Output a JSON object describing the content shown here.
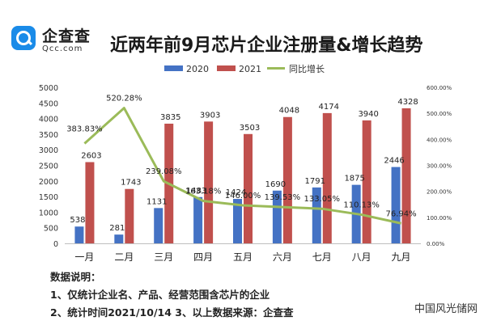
{
  "logo": {
    "name": "企查查",
    "url": "Qcc.com"
  },
  "title": "近两年前9月芯片企业注册量&增长趋势",
  "notes": {
    "heading": "数据说明：",
    "line1": "1、仅统计企业名、产品、经营范围含芯片的企业",
    "line2": "2、统计时间2021/10/14   3、以上数据来源：企查查"
  },
  "watermark": "中国风光储网",
  "colors": {
    "s2020": "#4472c4",
    "s2021": "#c0504d",
    "growth": "#9bbb59"
  },
  "chart_data": {
    "type": "bar",
    "title": "近两年前9月芯片企业注册量&增长趋势",
    "categories": [
      "一月",
      "二月",
      "三月",
      "四月",
      "五月",
      "六月",
      "七月",
      "八月",
      "九月"
    ],
    "series": [
      {
        "name": "2020",
        "type": "bar",
        "axis": "left",
        "values": [
          538,
          281,
          1131,
          1483,
          1424,
          1690,
          1791,
          1875,
          2446
        ]
      },
      {
        "name": "2021",
        "type": "bar",
        "axis": "left",
        "values": [
          2603,
          1743,
          3835,
          3903,
          3503,
          4048,
          4174,
          3940,
          4328
        ]
      },
      {
        "name": "同比增长",
        "type": "line",
        "axis": "right",
        "values": [
          383.83,
          520.28,
          239.08,
          163.18,
          146.0,
          139.53,
          133.05,
          110.13,
          76.94
        ],
        "labels": [
          "383.83%",
          "520.28%",
          "239.08%",
          "163.18%",
          "146.00%",
          "139.53%",
          "133.05%",
          "110.13%",
          "76.94%"
        ]
      }
    ],
    "ylim": [
      0,
      5000
    ],
    "yticks": [
      "0",
      "500",
      "1000",
      "1500",
      "2000",
      "2500",
      "3000",
      "3500",
      "4000",
      "4500",
      "5000"
    ],
    "y2lim": [
      0,
      600
    ],
    "y2ticks": [
      "0.00%",
      "100.00%",
      "200.00%",
      "300.00%",
      "400.00%",
      "500.00%",
      "600.00%"
    ],
    "legend_position": "top",
    "grid": false
  }
}
